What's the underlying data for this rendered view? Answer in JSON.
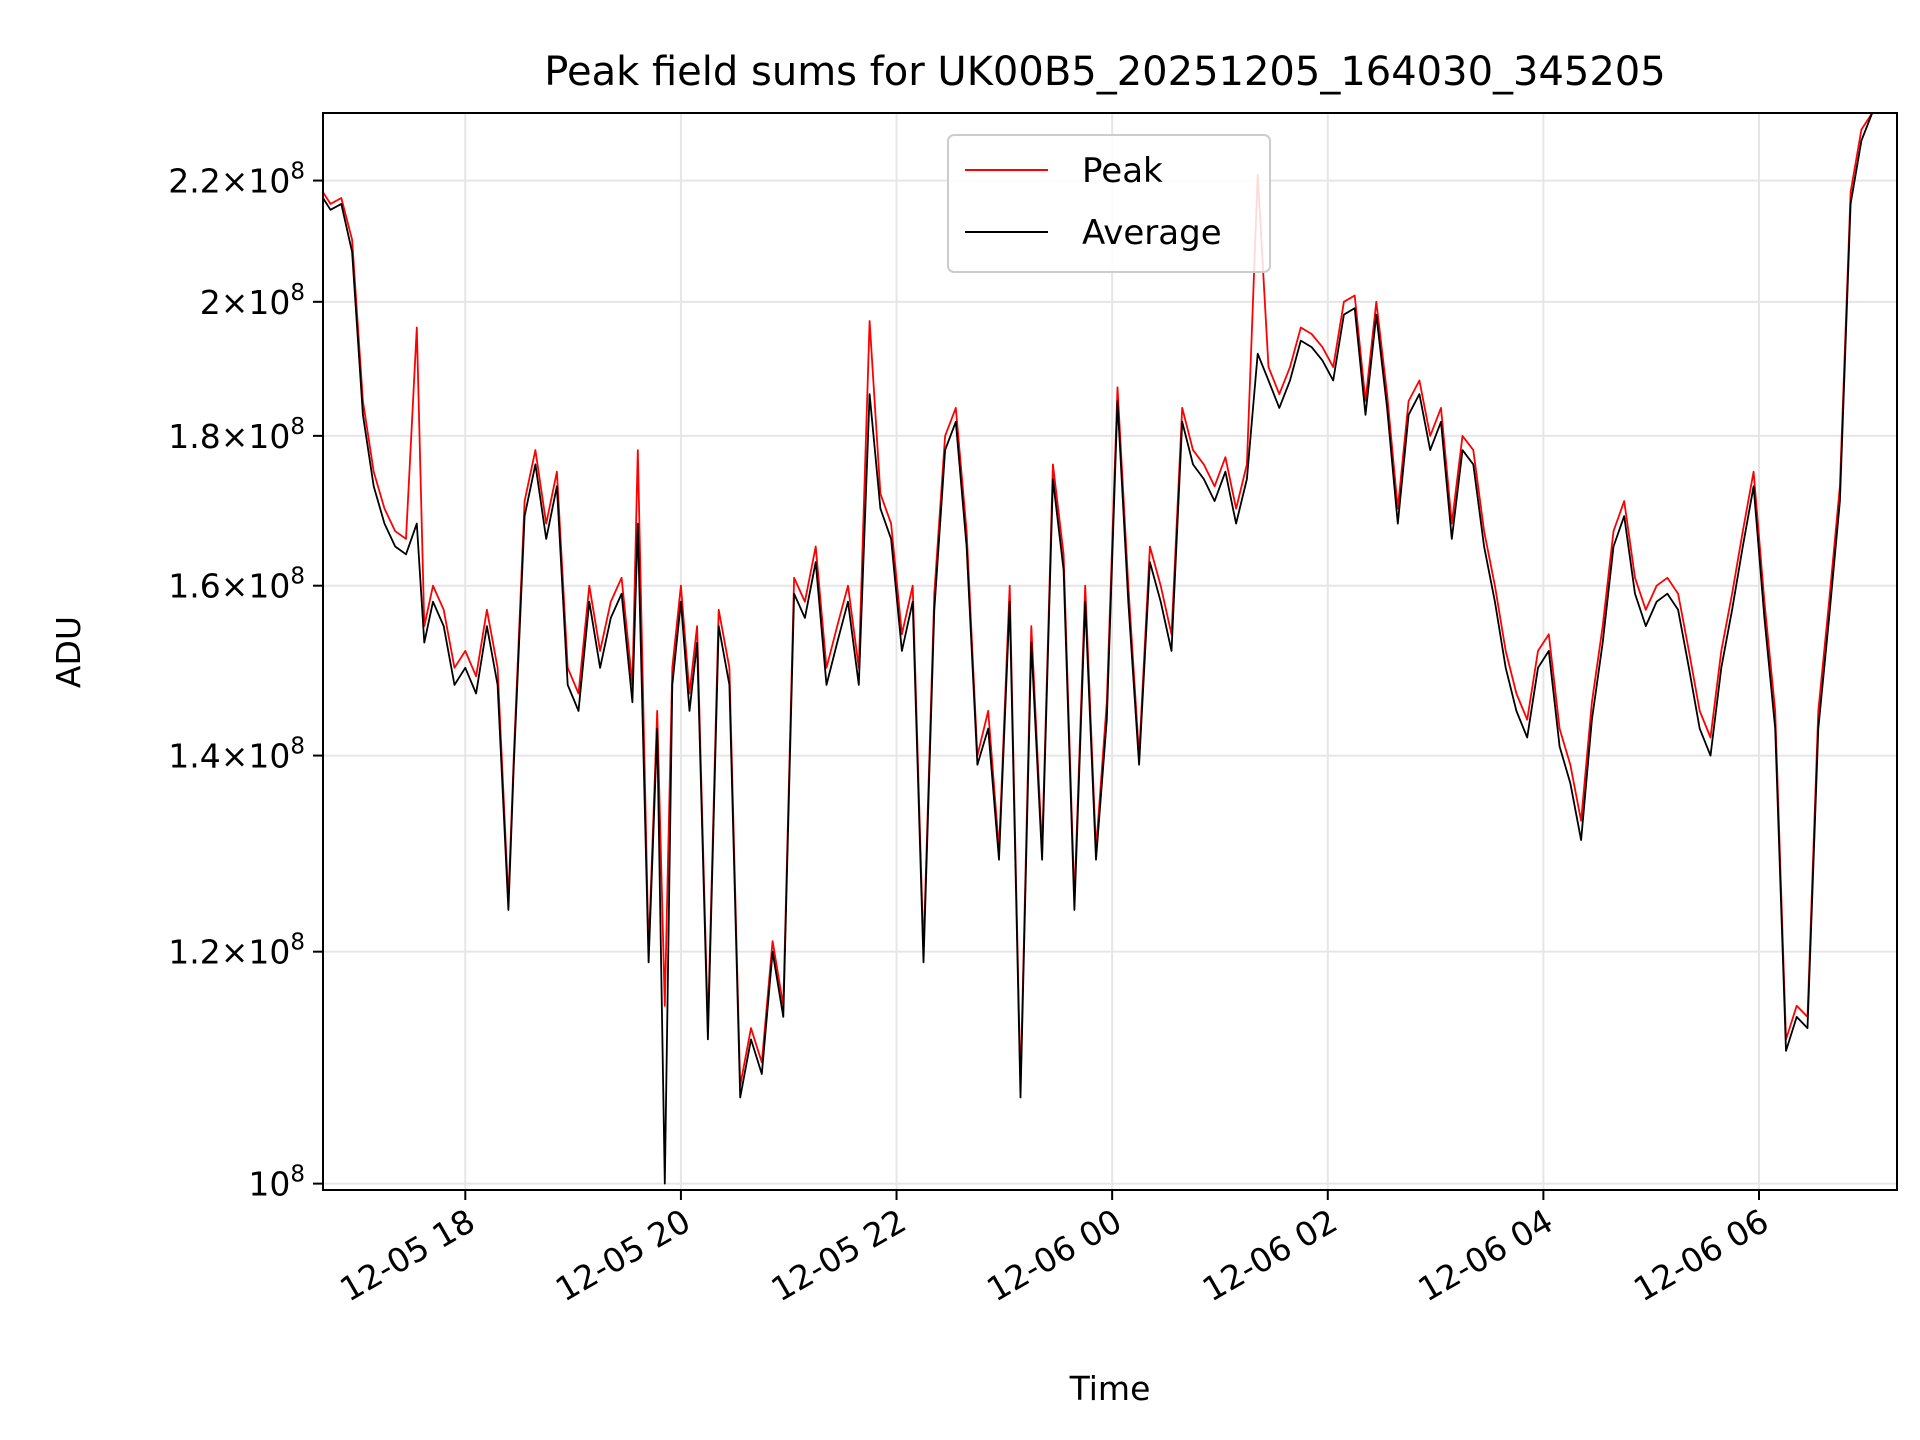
{
  "chart_data": {
    "type": "line",
    "title": "Peak field sums for UK00B5_20251205_164030_345205",
    "xlabel": "Time",
    "ylabel": "ADU",
    "yscale": "log",
    "xlim_hours": [
      16.68,
      31.28
    ],
    "ylim": [
      99500000,
      232000000
    ],
    "grid": true,
    "legend_loc": "upper center",
    "x_ticks": [
      {
        "hour": 18,
        "label": "12-05 18"
      },
      {
        "hour": 20,
        "label": "12-05 20"
      },
      {
        "hour": 22,
        "label": "12-05 22"
      },
      {
        "hour": 24,
        "label": "12-06 00"
      },
      {
        "hour": 26,
        "label": "12-06 02"
      },
      {
        "hour": 28,
        "label": "12-06 04"
      },
      {
        "hour": 30,
        "label": "12-06 06"
      }
    ],
    "y_ticks": [
      {
        "value": 100000000,
        "mantissa": "",
        "exp": "8"
      },
      {
        "value": 120000000,
        "mantissa": "1.2",
        "exp": "8"
      },
      {
        "value": 140000000,
        "mantissa": "1.4",
        "exp": "8"
      },
      {
        "value": 160000000,
        "mantissa": "1.6",
        "exp": "8"
      },
      {
        "value": 180000000,
        "mantissa": "1.8",
        "exp": "8"
      },
      {
        "value": 200000000,
        "mantissa": "2",
        "exp": "8"
      },
      {
        "value": 220000000,
        "mantissa": "2.2",
        "exp": "8"
      }
    ],
    "x_hours": [
      16.68,
      16.75,
      16.85,
      16.95,
      17.05,
      17.15,
      17.25,
      17.35,
      17.45,
      17.55,
      17.62,
      17.7,
      17.8,
      17.9,
      18.0,
      18.1,
      18.2,
      18.3,
      18.4,
      18.45,
      18.55,
      18.65,
      18.75,
      18.85,
      18.95,
      19.05,
      19.15,
      19.25,
      19.35,
      19.45,
      19.55,
      19.6,
      19.7,
      19.78,
      19.85,
      19.92,
      20.0,
      20.08,
      20.15,
      20.25,
      20.35,
      20.45,
      20.55,
      20.65,
      20.75,
      20.85,
      20.95,
      21.05,
      21.15,
      21.25,
      21.35,
      21.45,
      21.55,
      21.65,
      21.75,
      21.85,
      21.95,
      22.05,
      22.15,
      22.25,
      22.35,
      22.45,
      22.55,
      22.65,
      22.75,
      22.85,
      22.95,
      23.05,
      23.15,
      23.25,
      23.35,
      23.45,
      23.55,
      23.65,
      23.75,
      23.85,
      23.95,
      24.05,
      24.15,
      24.25,
      24.35,
      24.45,
      24.55,
      24.65,
      24.75,
      24.85,
      24.95,
      25.05,
      25.15,
      25.25,
      25.35,
      25.45,
      25.55,
      25.65,
      25.75,
      25.85,
      25.95,
      26.05,
      26.15,
      26.25,
      26.35,
      26.45,
      26.55,
      26.65,
      26.75,
      26.85,
      26.95,
      27.05,
      27.15,
      27.25,
      27.35,
      27.45,
      27.55,
      27.65,
      27.75,
      27.85,
      27.95,
      28.05,
      28.15,
      28.25,
      28.35,
      28.45,
      28.55,
      28.65,
      28.75,
      28.85,
      28.95,
      29.05,
      29.15,
      29.25,
      29.35,
      29.45,
      29.55,
      29.65,
      29.75,
      29.85,
      29.95,
      30.05,
      30.15,
      30.25,
      30.35,
      30.45,
      30.55,
      30.65,
      30.75,
      30.85,
      30.95,
      31.05,
      31.15,
      31.25
    ],
    "series": [
      {
        "name": "Peak",
        "color": "#ff0000",
        "values": [
          218000000,
          216000000,
          217000000,
          210000000,
          185000000,
          175000000,
          170000000,
          167000000,
          166000000,
          196000000,
          155000000,
          160000000,
          157000000,
          150000000,
          152000000,
          149000000,
          157000000,
          150000000,
          125000000,
          140000000,
          171000000,
          178000000,
          168000000,
          175000000,
          150000000,
          147000000,
          160000000,
          152000000,
          158000000,
          161000000,
          148000000,
          178000000,
          120000000,
          145000000,
          115000000,
          150000000,
          160000000,
          147000000,
          155000000,
          113000000,
          157000000,
          150000000,
          108000000,
          113000000,
          110000000,
          121000000,
          115000000,
          161000000,
          158000000,
          165000000,
          150000000,
          155000000,
          160000000,
          150000000,
          197000000,
          172000000,
          168000000,
          154000000,
          160000000,
          120000000,
          159000000,
          180000000,
          184000000,
          167000000,
          140000000,
          145000000,
          130000000,
          160000000,
          108000000,
          155000000,
          130000000,
          176000000,
          164000000,
          125000000,
          160000000,
          130000000,
          146000000,
          187000000,
          160000000,
          140000000,
          165000000,
          160000000,
          154000000,
          184000000,
          178000000,
          176000000,
          173000000,
          177000000,
          170000000,
          176000000,
          221000000,
          190000000,
          186000000,
          190000000,
          196000000,
          195000000,
          193000000,
          190000000,
          200000000,
          201000000,
          185000000,
          200000000,
          186000000,
          170000000,
          185000000,
          188000000,
          180000000,
          184000000,
          168000000,
          180000000,
          178000000,
          167000000,
          160000000,
          152000000,
          147000000,
          144000000,
          152000000,
          154000000,
          143000000,
          139000000,
          133000000,
          146000000,
          155000000,
          167000000,
          171000000,
          161000000,
          157000000,
          160000000,
          161000000,
          159000000,
          152000000,
          145000000,
          142000000,
          152000000,
          159000000,
          167000000,
          175000000,
          158000000,
          145000000,
          112000000,
          115000000,
          114000000,
          145000000,
          158000000,
          173000000,
          218000000,
          229000000,
          232000000
        ]
      },
      {
        "name": "Average",
        "color": "#000000",
        "values": [
          217000000,
          215000000,
          216000000,
          208000000,
          183000000,
          173000000,
          168000000,
          165000000,
          164000000,
          168000000,
          153000000,
          158000000,
          155000000,
          148000000,
          150000000,
          147000000,
          155000000,
          148000000,
          124000000,
          139000000,
          169000000,
          176000000,
          166000000,
          173000000,
          148000000,
          145000000,
          158000000,
          150000000,
          156000000,
          159000000,
          146000000,
          168000000,
          119000000,
          143000000,
          100000000,
          148000000,
          158000000,
          145000000,
          153000000,
          112000000,
          155000000,
          148000000,
          107000000,
          112000000,
          109000000,
          120000000,
          114000000,
          159000000,
          156000000,
          163000000,
          148000000,
          153000000,
          158000000,
          148000000,
          186000000,
          170000000,
          166000000,
          152000000,
          158000000,
          119000000,
          157000000,
          178000000,
          182000000,
          165000000,
          139000000,
          143000000,
          129000000,
          158000000,
          107000000,
          153000000,
          129000000,
          174000000,
          162000000,
          124000000,
          158000000,
          129000000,
          144000000,
          185000000,
          158000000,
          139000000,
          163000000,
          158000000,
          152000000,
          182000000,
          176000000,
          174000000,
          171000000,
          175000000,
          168000000,
          174000000,
          192000000,
          188000000,
          184000000,
          188000000,
          194000000,
          193000000,
          191000000,
          188000000,
          198000000,
          199000000,
          183000000,
          198000000,
          184000000,
          168000000,
          183000000,
          186000000,
          178000000,
          182000000,
          166000000,
          178000000,
          176000000,
          165000000,
          158000000,
          150000000,
          145000000,
          142000000,
          150000000,
          152000000,
          141000000,
          137000000,
          131000000,
          144000000,
          153000000,
          165000000,
          169000000,
          159000000,
          155000000,
          158000000,
          159000000,
          157000000,
          150000000,
          143000000,
          140000000,
          150000000,
          157000000,
          165000000,
          173000000,
          156000000,
          143000000,
          111000000,
          114000000,
          113000000,
          143000000,
          156000000,
          171000000,
          216000000,
          227000000,
          232000000
        ]
      }
    ]
  }
}
